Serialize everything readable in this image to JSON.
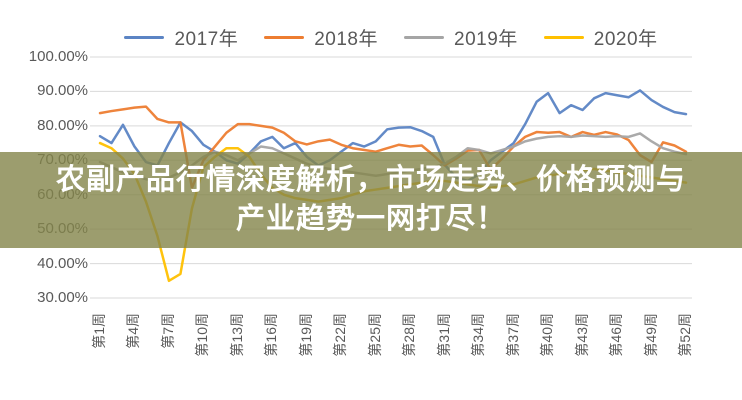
{
  "banner": {
    "line1": "农副产品行情深度解析，市场走势、价格预测与",
    "line2": "产业趋势一网打尽！",
    "bg_color": "rgba(131,133,74,0.8)",
    "text_color": "#ffffff"
  },
  "chart_data": {
    "type": "line",
    "title": "",
    "xlabel": "",
    "ylabel": "",
    "ylim": [
      30,
      100
    ],
    "ytick_step": 10,
    "grid": true,
    "legend_position": "top",
    "ytick_labels": [
      "100.00%",
      "90.00%",
      "80.00%",
      "70.00%",
      "60.00%",
      "50.00%",
      "40.00%",
      "30.00%"
    ],
    "xtick_labels": [
      "第1周",
      "第4周",
      "第7周",
      "第10周",
      "第13周",
      "第16周",
      "第19周",
      "第22周",
      "第25周",
      "第28周",
      "第31周",
      "第34周",
      "第37周",
      "第40周",
      "第43周",
      "第46周",
      "第49周",
      "第52周"
    ],
    "xtick_weeks": [
      1,
      4,
      7,
      10,
      13,
      16,
      19,
      22,
      25,
      28,
      31,
      34,
      37,
      40,
      43,
      46,
      49,
      52
    ],
    "x": [
      1,
      2,
      3,
      4,
      5,
      6,
      7,
      8,
      9,
      10,
      11,
      12,
      13,
      14,
      15,
      16,
      17,
      18,
      19,
      20,
      21,
      22,
      23,
      24,
      25,
      26,
      27,
      28,
      29,
      30,
      31,
      32,
      33,
      34,
      35,
      36,
      37,
      38,
      39,
      40,
      41,
      42,
      43,
      44,
      45,
      46,
      47,
      48,
      49,
      50,
      51,
      52
    ],
    "gridline_color": "#d9d9d9",
    "axis_text_color": "#595959",
    "series": [
      {
        "name": "2017年",
        "color": "#5b84c4",
        "values": [
          77,
          75,
          80.3,
          74,
          69.5,
          68.5,
          75,
          81,
          78.5,
          74.5,
          72.5,
          70,
          69,
          72,
          75.5,
          76.8,
          73.5,
          75,
          71,
          68.5,
          70,
          72.5,
          75,
          74,
          75.5,
          79,
          79.5,
          79.6,
          78.5,
          76.8,
          68.7,
          65,
          64,
          66,
          70,
          72.5,
          75,
          80.5,
          87,
          89.5,
          83.7,
          86,
          84.6,
          88,
          89.5,
          88.9,
          88.3,
          90.3,
          87.5,
          85.5,
          84,
          83.4
        ]
      },
      {
        "name": "2018年",
        "color": "#ed7d31",
        "values": [
          83.7,
          84.3,
          84.8,
          85.3,
          85.6,
          82,
          81,
          81,
          62,
          70,
          74,
          78,
          80.5,
          80.5,
          80,
          79.5,
          78,
          75.5,
          74.6,
          75.5,
          76,
          74.5,
          73.5,
          73,
          72.5,
          73.5,
          74.5,
          74,
          74.3,
          71.5,
          68.5,
          70.5,
          72.8,
          73,
          67.3,
          70.5,
          74,
          76.8,
          78.2,
          78,
          78.2,
          76.8,
          78.2,
          77.4,
          78.2,
          77.5,
          75.9,
          71.5,
          69.5,
          75.2,
          74.3,
          72.5
        ]
      },
      {
        "name": "2019年",
        "color": "#a5a5a5",
        "values": [
          69.5,
          68,
          66.5,
          65.5,
          64.5,
          64,
          65,
          66.5,
          68.5,
          71,
          72.5,
          71.5,
          70,
          72,
          74,
          73.5,
          72,
          70.5,
          69,
          68,
          67.5,
          67,
          66.5,
          66,
          65.5,
          66,
          66.5,
          67,
          67.5,
          68,
          69,
          71,
          73.5,
          73,
          72,
          73,
          74,
          75.5,
          76.3,
          76.8,
          77,
          76.8,
          77.2,
          77,
          76.8,
          77,
          76.8,
          77.8,
          75.5,
          73.5,
          72.5,
          71.8
        ]
      },
      {
        "name": "2020年",
        "color": "#ffc000",
        "values": [
          75,
          73.5,
          70.5,
          66,
          58,
          48,
          35,
          37,
          56,
          68,
          71,
          73.5,
          73.5,
          71,
          66,
          62,
          60,
          59,
          58.5,
          58,
          58.5,
          59,
          60,
          61,
          61.5,
          62,
          62.5,
          63,
          63.5,
          64,
          64,
          63.5,
          63,
          62.5,
          62,
          62.5,
          63,
          64,
          65,
          65.5,
          66,
          66.5,
          67,
          67.5,
          67,
          66.5,
          66,
          65.5,
          65,
          64.5,
          64,
          63.5
        ]
      }
    ]
  }
}
